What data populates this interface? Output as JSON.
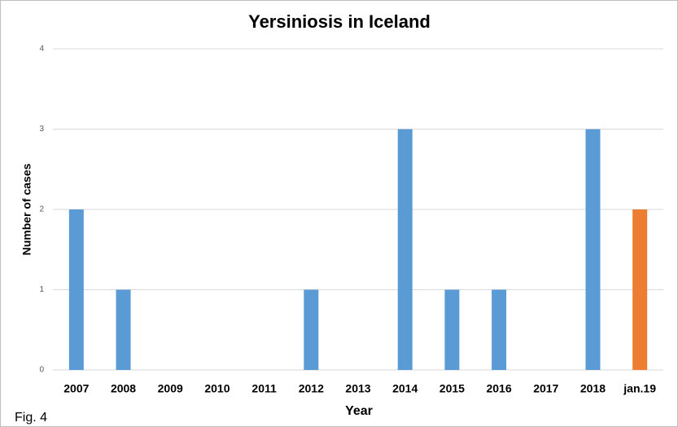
{
  "chart_data": {
    "type": "bar",
    "title": "Yersiniosis in Iceland",
    "x_label": "Year",
    "y_label": "Number of cases",
    "annotation": "Fig. 4",
    "categories": [
      "2007",
      "2008",
      "2009",
      "2010",
      "2011",
      "2012",
      "2013",
      "2014",
      "2015",
      "2016",
      "2017",
      "2018",
      "jan.19"
    ],
    "values": [
      2,
      1,
      0,
      0,
      0,
      1,
      0,
      3,
      1,
      1,
      0,
      3,
      2
    ],
    "colors": [
      "#5b9bd5",
      "#5b9bd5",
      "#5b9bd5",
      "#5b9bd5",
      "#5b9bd5",
      "#5b9bd5",
      "#5b9bd5",
      "#5b9bd5",
      "#5b9bd5",
      "#5b9bd5",
      "#5b9bd5",
      "#5b9bd5",
      "#ed7d31"
    ],
    "ylim": [
      0,
      4
    ],
    "yticks": [
      0,
      1,
      2,
      3,
      4
    ],
    "grid": true
  }
}
